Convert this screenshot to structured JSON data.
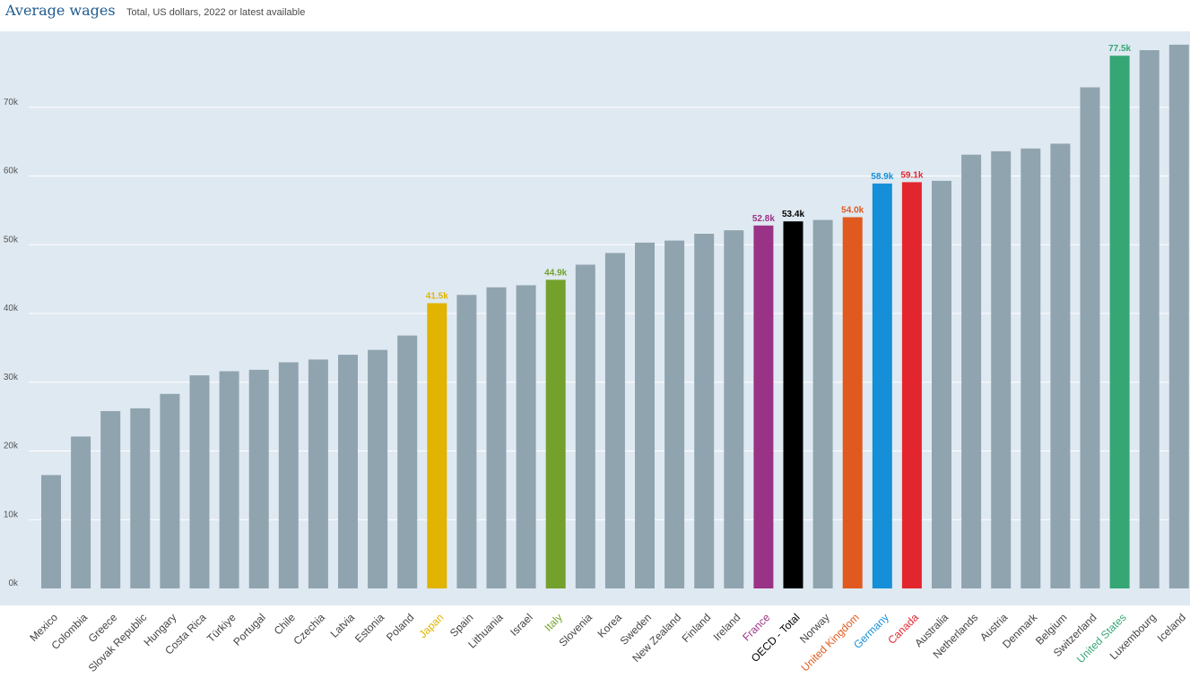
{
  "header": {
    "title": "Average wages",
    "subtitle": "Total, US dollars, 2022 or latest available"
  },
  "chart_data": {
    "type": "bar",
    "title": "Average wages",
    "subtitle": "Total, US dollars, 2022 or latest available",
    "ylim": [
      0,
      80000
    ],
    "yticks": [
      0,
      10000,
      20000,
      30000,
      40000,
      50000,
      60000,
      70000
    ],
    "ytick_labels": [
      "0k",
      "10k",
      "20k",
      "30k",
      "40k",
      "50k",
      "60k",
      "70k"
    ],
    "grid": true,
    "default_color": "#90a4b0",
    "categories": [
      "Mexico",
      "Colombia",
      "Greece",
      "Slovak Republic",
      "Hungary",
      "Costa Rica",
      "Türkiye",
      "Portugal",
      "Chile",
      "Czechia",
      "Latvia",
      "Estonia",
      "Poland",
      "Japan",
      "Spain",
      "Lithuania",
      "Israel",
      "Italy",
      "Slovenia",
      "Korea",
      "Sweden",
      "New Zealand",
      "Finland",
      "Ireland",
      "France",
      "OECD - Total",
      "Norway",
      "United Kingdom",
      "Germany",
      "Canada",
      "Australia",
      "Netherlands",
      "Austria",
      "Denmark",
      "Belgium",
      "Switzerland",
      "United States",
      "Luxembourg",
      "Iceland"
    ],
    "values": [
      16500,
      22100,
      25800,
      26200,
      28300,
      31000,
      31600,
      31800,
      32900,
      33300,
      34000,
      34700,
      36800,
      41500,
      42700,
      43800,
      44100,
      44900,
      47100,
      48800,
      50300,
      50600,
      51600,
      52100,
      52800,
      53400,
      53600,
      54000,
      58900,
      59100,
      59300,
      63100,
      63600,
      64000,
      64700,
      72900,
      77500,
      78300,
      79100
    ],
    "highlights": [
      {
        "category": "Japan",
        "label": "41.5k",
        "color": "#e0b400"
      },
      {
        "category": "Italy",
        "label": "44.9k",
        "color": "#73a12c"
      },
      {
        "category": "France",
        "label": "52.8k",
        "color": "#9a3386"
      },
      {
        "category": "OECD - Total",
        "label": "53.4k",
        "color": "#000000"
      },
      {
        "category": "United Kingdom",
        "label": "54.0k",
        "color": "#e05a20"
      },
      {
        "category": "Germany",
        "label": "58.9k",
        "color": "#1590d8"
      },
      {
        "category": "Canada",
        "label": "59.1k",
        "color": "#e3262e"
      },
      {
        "category": "United States",
        "label": "77.5k",
        "color": "#36a675"
      }
    ]
  }
}
